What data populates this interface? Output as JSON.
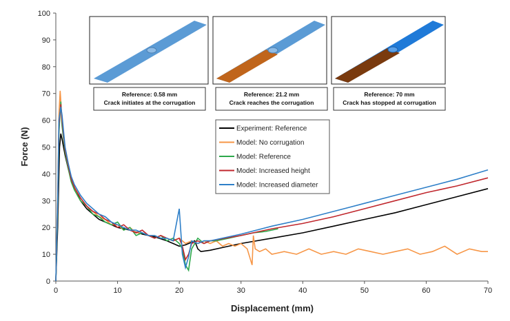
{
  "chart_data": {
    "type": "line",
    "xlabel": "Displacement (mm)",
    "ylabel": "Force (N)",
    "xlim": [
      0,
      70
    ],
    "ylim": [
      0,
      100
    ],
    "xticks": [
      0,
      10,
      20,
      30,
      40,
      50,
      60,
      70
    ],
    "yticks": [
      0,
      10,
      20,
      30,
      40,
      50,
      60,
      70,
      80,
      90,
      100
    ],
    "annotations": [
      [
        "Reference: 0.58 mm",
        "Crack initiates at the corrugation"
      ],
      [
        "Reference: 21.2 mm",
        "Crack reaches the corrugation"
      ],
      [
        "Reference: 70 mm",
        "Crack has stopped at corrugation"
      ]
    ],
    "series": [
      {
        "name": "Experiment: Reference",
        "color": "#000000",
        "x": [
          0,
          0.3,
          0.6,
          0.8,
          1,
          1.5,
          2,
          2.5,
          3,
          4,
          5,
          6,
          7,
          8,
          9,
          10,
          12,
          14,
          16,
          18,
          19,
          20,
          21,
          22,
          22.5,
          23,
          23.5,
          25,
          27,
          30,
          35,
          40,
          45,
          50,
          55,
          60,
          65,
          70
        ],
        "values": [
          0,
          20,
          50,
          55,
          53,
          47,
          42,
          38,
          35,
          30,
          27,
          25,
          23,
          22,
          21,
          20,
          19,
          17.5,
          16.5,
          15,
          14,
          13,
          13.5,
          14.5,
          15,
          12,
          11,
          11.5,
          12.5,
          14,
          16,
          18,
          20.5,
          23,
          25.5,
          28.5,
          31.5,
          34.5
        ]
      },
      {
        "name": "Model: No corrugation",
        "color": "#f79646",
        "x": [
          0,
          0.3,
          0.5,
          0.7,
          1,
          1.5,
          2,
          2.5,
          3,
          3.5,
          4,
          5,
          6,
          7,
          8,
          9,
          10,
          11,
          12,
          13,
          14,
          15,
          16,
          17,
          18,
          19,
          20,
          21,
          22,
          23,
          24,
          25,
          26,
          27,
          28,
          29,
          30,
          31,
          31.8,
          32,
          32.3,
          33,
          34,
          35,
          37,
          39,
          41,
          43,
          45,
          47,
          49,
          51,
          53,
          55,
          57,
          59,
          61,
          63,
          65,
          67,
          69,
          70
        ],
        "values": [
          0,
          30,
          62,
          71,
          60,
          50,
          44,
          38,
          35,
          32,
          30,
          28,
          26,
          24,
          23,
          21,
          21,
          19,
          20,
          18,
          18,
          17,
          17,
          16,
          16,
          15,
          16,
          14,
          15,
          14,
          15,
          14,
          15,
          13,
          14,
          13,
          14,
          12,
          6,
          17,
          12,
          11,
          12,
          10,
          11,
          10,
          12,
          10,
          11,
          10,
          12,
          11,
          10,
          11,
          12,
          10,
          11,
          13,
          10,
          12,
          11,
          11
        ]
      },
      {
        "name": "Model: Reference",
        "color": "#2ca84a",
        "x": [
          0,
          0.3,
          0.5,
          0.8,
          1,
          1.5,
          2,
          2.5,
          3,
          4,
          5,
          6,
          7,
          8,
          9,
          10,
          11,
          12,
          13,
          14,
          15,
          16,
          17,
          18,
          19,
          20,
          20.5,
          21,
          21.5,
          22,
          23,
          24,
          25,
          26,
          28,
          30,
          32,
          34,
          36
        ],
        "values": [
          0,
          25,
          55,
          67,
          58,
          48,
          42,
          37,
          34,
          30,
          28,
          25,
          24,
          22,
          21,
          22,
          19,
          20,
          17,
          18,
          17,
          16,
          17,
          15,
          16,
          14,
          12,
          6,
          4,
          12,
          16,
          14,
          15,
          15,
          16,
          17,
          18,
          18.5,
          19.5
        ]
      },
      {
        "name": "Model: Increased height",
        "color": "#c0272d",
        "x": [
          0,
          0.3,
          0.5,
          0.8,
          1,
          1.5,
          2,
          2.5,
          3,
          4,
          5,
          6,
          7,
          8,
          9,
          10,
          11,
          12,
          13,
          14,
          15,
          16,
          17,
          18,
          19,
          20,
          20.5,
          21,
          21.5,
          22,
          23,
          24,
          25,
          30,
          35,
          40,
          45,
          50,
          55,
          60,
          65,
          70
        ],
        "values": [
          0,
          28,
          58,
          66,
          60,
          49,
          43,
          38,
          35,
          31,
          28,
          26,
          25,
          23,
          22,
          20,
          21,
          19,
          18,
          19,
          17,
          16,
          17,
          16,
          15,
          16,
          13,
          8,
          10,
          14,
          15,
          14,
          15,
          17,
          19.5,
          21.5,
          24,
          27,
          30,
          33,
          35.5,
          38.5
        ]
      },
      {
        "name": "Model: Increased diameter",
        "color": "#2e7fc8",
        "x": [
          0,
          0.3,
          0.5,
          0.8,
          1,
          1.5,
          2,
          2.5,
          3,
          4,
          5,
          6,
          7,
          8,
          9,
          10,
          11,
          12,
          13,
          14,
          15,
          16,
          17,
          18,
          19,
          20,
          20.5,
          21,
          21.5,
          22,
          23,
          24,
          25,
          30,
          35,
          40,
          45,
          50,
          55,
          60,
          65,
          70
        ],
        "values": [
          0,
          30,
          60,
          65,
          62,
          50,
          44,
          39,
          36,
          32,
          29,
          27,
          25,
          24,
          22,
          21,
          20,
          19,
          19,
          18,
          17,
          17,
          16,
          16,
          15,
          27,
          10,
          5,
          9,
          15,
          14,
          15,
          15,
          17.5,
          20.5,
          23,
          26,
          29,
          32,
          35,
          38,
          41.5
        ]
      }
    ]
  }
}
